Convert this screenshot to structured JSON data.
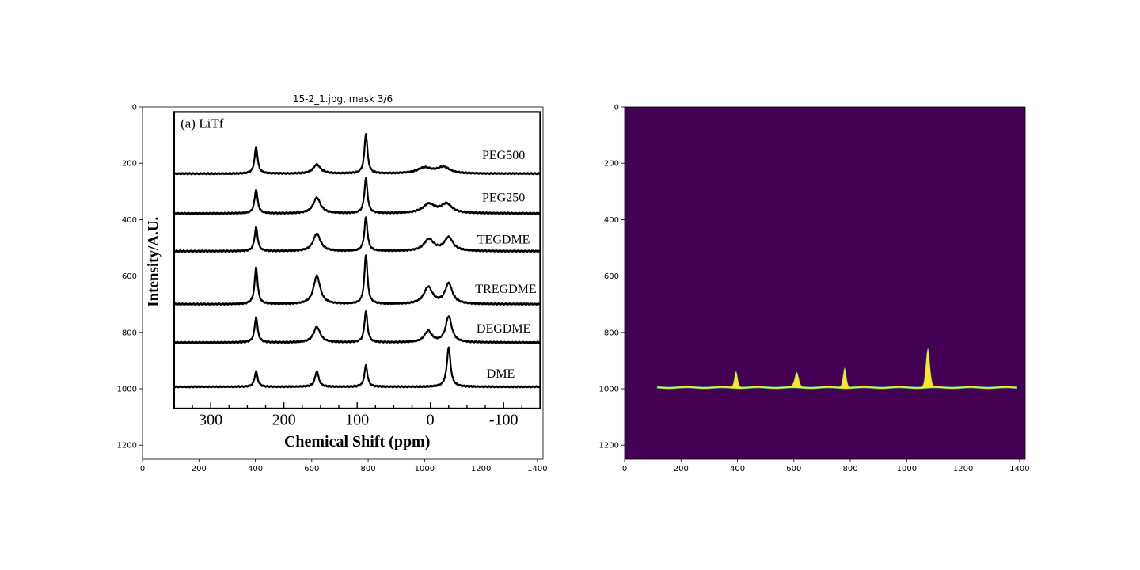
{
  "figure": {
    "title": "15-2_1.jpg, mask 3/6",
    "background": "#ffffff"
  },
  "chart_data": [
    {
      "type": "image",
      "panel": "left",
      "xlim": [
        0,
        1420
      ],
      "ylim": [
        1250,
        0
      ],
      "x_ticks": [
        0,
        200,
        400,
        600,
        800,
        1000,
        1200,
        1400
      ],
      "y_ticks": [
        0,
        200,
        400,
        600,
        800,
        1000,
        1200
      ],
      "embedded_chart": {
        "type": "line",
        "panel_label": "(a) LiTf",
        "xlabel": "Chemical Shift (ppm)",
        "ylabel": "Intensity/A.U.",
        "x_tick_labels": [
          "300",
          "200",
          "100",
          "0",
          "-100"
        ],
        "x_ticks": [
          300,
          200,
          100,
          0,
          -100
        ],
        "xlim": [
          350,
          -150
        ],
        "peaks_ppm": [
          238,
          155,
          88,
          2,
          -25
        ],
        "series": [
          {
            "name": "PEG500",
            "baseline": 237,
            "peaks": [
              [
                238,
                95,
                2.5
              ],
              [
                155,
                32,
                6
              ],
              [
                88,
                140,
                2.5
              ],
              [
                8,
                20,
                12
              ],
              [
                -18,
                22,
                10
              ]
            ]
          },
          {
            "name": "PEG250",
            "baseline": 378,
            "peaks": [
              [
                238,
                85,
                2.5
              ],
              [
                155,
                55,
                6
              ],
              [
                88,
                125,
                2.5
              ],
              [
                2,
                32,
                10
              ],
              [
                -22,
                32,
                9
              ]
            ]
          },
          {
            "name": "TEGDME",
            "baseline": 512,
            "peaks": [
              [
                238,
                85,
                2.5
              ],
              [
                155,
                62,
                6
              ],
              [
                88,
                120,
                2.5
              ],
              [
                2,
                42,
                8
              ],
              [
                -25,
                48,
                7
              ]
            ]
          },
          {
            "name": "TREGDME",
            "baseline": 700,
            "peaks": [
              [
                238,
                130,
                2.5
              ],
              [
                155,
                100,
                5.5
              ],
              [
                88,
                175,
                2.5
              ],
              [
                3,
                60,
                7
              ],
              [
                -25,
                72,
                6
              ]
            ]
          },
          {
            "name": "DEGDME",
            "baseline": 836,
            "peaks": [
              [
                238,
                90,
                2.5
              ],
              [
                155,
                55,
                5.5
              ],
              [
                88,
                110,
                2.5
              ],
              [
                3,
                40,
                6
              ],
              [
                -25,
                92,
                5
              ]
            ]
          },
          {
            "name": "DME",
            "baseline": 993,
            "peaks": [
              [
                238,
                55,
                2.5
              ],
              [
                155,
                55,
                3
              ],
              [
                88,
                75,
                2.5
              ],
              [
                -25,
                140,
                3
              ]
            ]
          }
        ]
      }
    },
    {
      "type": "heatmap",
      "panel": "right",
      "xlim": [
        0,
        1420
      ],
      "ylim": [
        1250,
        0
      ],
      "x_ticks": [
        0,
        200,
        400,
        600,
        800,
        1000,
        1200,
        1400
      ],
      "y_ticks": [
        0,
        200,
        400,
        600,
        800,
        1000,
        1200
      ],
      "colors": {
        "background": "#440154",
        "mask": "#fde725",
        "edge": "#21918c"
      },
      "mask_line": {
        "x_start": 115,
        "x_end": 1390,
        "y": 995,
        "peaks": [
          {
            "x": 395,
            "height": 55,
            "width": 8
          },
          {
            "x": 610,
            "height": 50,
            "width": 10
          },
          {
            "x": 780,
            "height": 68,
            "width": 8
          },
          {
            "x": 1075,
            "height": 135,
            "width": 10
          }
        ]
      }
    }
  ]
}
